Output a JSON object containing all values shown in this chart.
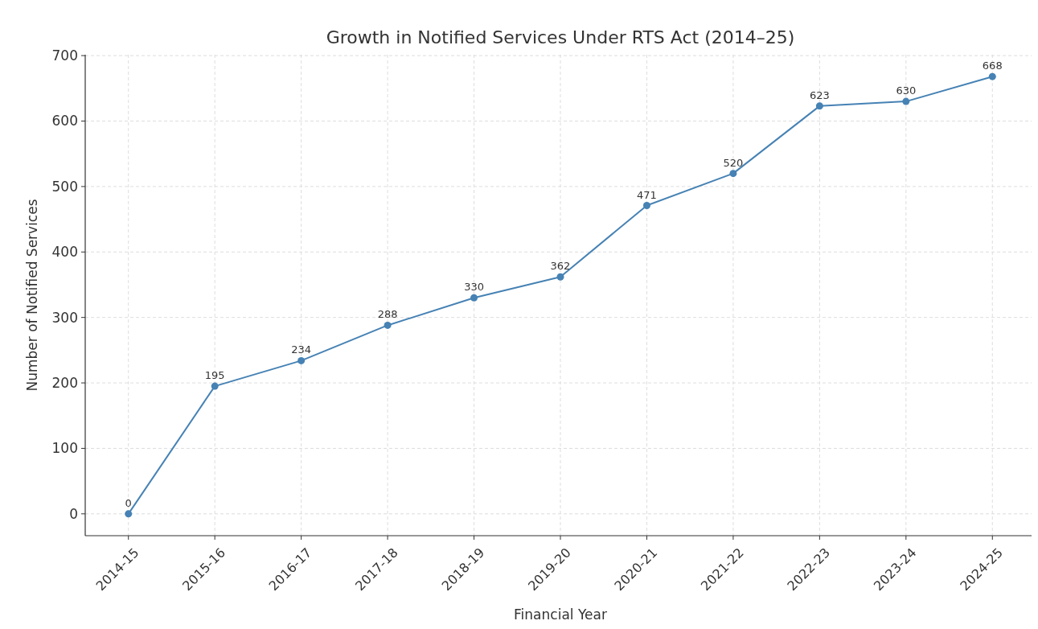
{
  "chart_data": {
    "type": "line",
    "title": "Growth in Notified Services Under RTS Act (2014–25)",
    "xlabel": "Financial Year",
    "ylabel": "Number of Notified Services",
    "categories": [
      "2014-15",
      "2015-16",
      "2016-17",
      "2017-18",
      "2018-19",
      "2019-20",
      "2020-21",
      "2021-22",
      "2022-23",
      "2023-24",
      "2024-25"
    ],
    "series": [
      {
        "color": "#4682b4",
        "values": [
          0,
          195,
          234,
          288,
          330,
          362,
          471,
          520,
          623,
          630,
          668
        ]
      }
    ],
    "ylim": [
      -33.4,
      701.4
    ],
    "yticks": [
      0,
      100,
      200,
      300,
      400,
      500,
      600,
      700
    ],
    "grid": true,
    "marker": "circle",
    "line_style": "solid",
    "data_labels": true
  }
}
